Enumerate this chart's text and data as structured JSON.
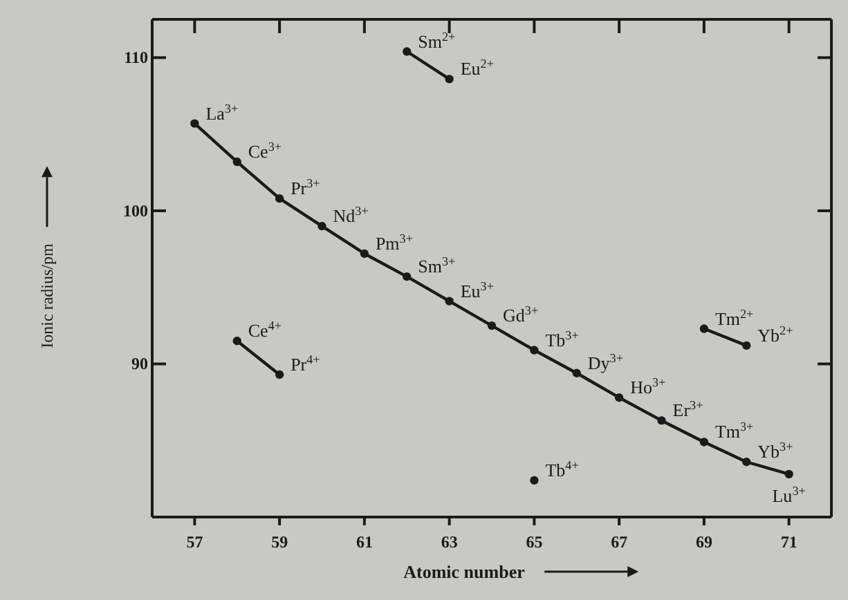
{
  "chart_data": {
    "type": "line",
    "xlabel": "Atomic number",
    "ylabel": "Ionic radius/pm",
    "xlim": [
      56,
      72
    ],
    "ylim": [
      80,
      112.5
    ],
    "xticks": [
      57,
      59,
      61,
      63,
      65,
      67,
      69,
      71
    ],
    "yticks": [
      90,
      100,
      110
    ],
    "grid": false,
    "marker": "circle",
    "line_style": "solid",
    "series": [
      {
        "color": "#1a1a1a",
        "x": [
          57,
          58,
          59,
          60,
          61,
          62,
          63,
          64,
          65,
          66,
          67,
          68,
          69,
          70,
          71
        ],
        "values": [
          105.7,
          103.2,
          100.8,
          99.0,
          97.2,
          95.7,
          94.1,
          92.5,
          90.9,
          89.4,
          87.8,
          86.3,
          84.9,
          83.6,
          82.8
        ]
      },
      {
        "color": "#1a1a1a",
        "x": [
          62,
          63
        ],
        "values": [
          110.4,
          108.6
        ]
      },
      {
        "color": "#1a1a1a",
        "x": [
          58,
          59
        ],
        "values": [
          91.5,
          89.3
        ]
      },
      {
        "color": "#1a1a1a",
        "x": [
          69,
          70
        ],
        "values": [
          92.3,
          91.2
        ]
      },
      {
        "color": "#1a1a1a",
        "type": "scatter",
        "x": [
          65
        ],
        "values": [
          82.4
        ]
      }
    ],
    "annotations": [
      {
        "text": "La$^{3+}$",
        "x": 57,
        "y": 105.7
      },
      {
        "text": "Ce$^{3+}$",
        "x": 58,
        "y": 103.2
      },
      {
        "text": "Pr$^{3+}$",
        "x": 59,
        "y": 100.8
      },
      {
        "text": "Nd$^{3+}$",
        "x": 60,
        "y": 99.0
      },
      {
        "text": "Pm$^{3+}$",
        "x": 61,
        "y": 97.2
      },
      {
        "text": "Sm$^{3+}$",
        "x": 62,
        "y": 95.7
      },
      {
        "text": "Eu$^{3+}$",
        "x": 63,
        "y": 94.1
      },
      {
        "text": "Gd$^{3+}$",
        "x": 64,
        "y": 92.5
      },
      {
        "text": "Tb$^{3+}$",
        "x": 65,
        "y": 90.9
      },
      {
        "text": "Dy$^{3+}$",
        "x": 66,
        "y": 89.4
      },
      {
        "text": "Ho$^{3+}$",
        "x": 67,
        "y": 87.8
      },
      {
        "text": "Er$^{3+}$",
        "x": 68,
        "y": 86.3
      },
      {
        "text": "Tm$^{3+}$",
        "x": 69,
        "y": 84.9
      },
      {
        "text": "Yb$^{3+}$",
        "x": 70,
        "y": 83.6
      },
      {
        "text": "Lu$^{3+}$",
        "x": 71,
        "y": 82.8
      },
      {
        "text": "Sm$^{2+}$",
        "x": 62,
        "y": 110.4
      },
      {
        "text": "Eu$^{2+}$",
        "x": 63,
        "y": 108.6
      },
      {
        "text": "Ce$^{4+}$",
        "x": 58,
        "y": 91.5
      },
      {
        "text": "Pr$^{4+}$",
        "x": 59,
        "y": 89.3
      },
      {
        "text": "Tm$^{2+}$",
        "x": 69,
        "y": 92.3
      },
      {
        "text": "Yb$^{2+}$",
        "x": 70,
        "y": 91.2
      },
      {
        "text": "Tb$^{4+}$",
        "x": 65,
        "y": 82.4
      }
    ]
  }
}
